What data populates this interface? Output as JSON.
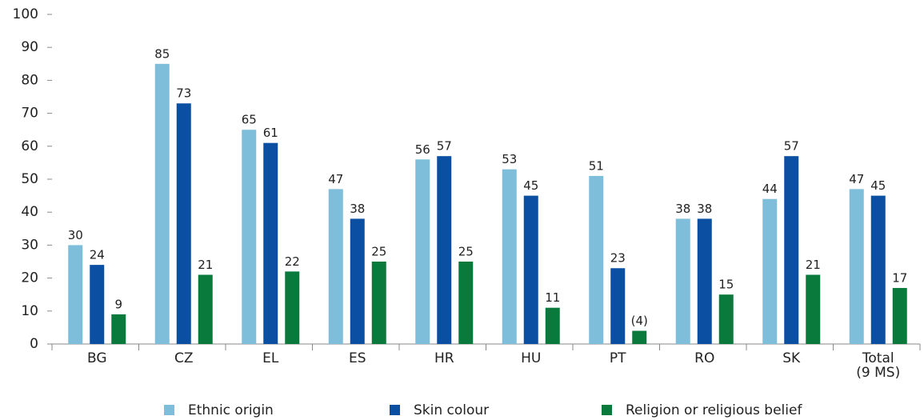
{
  "chart_data": {
    "type": "bar",
    "categories": [
      "BG",
      "CZ",
      "EL",
      "ES",
      "HR",
      "HU",
      "PT",
      "RO",
      "SK",
      "Total\n(9 MS)"
    ],
    "series": [
      {
        "name": "Ethnic origin",
        "color": "#7fbedb",
        "values": [
          30,
          85,
          65,
          47,
          56,
          53,
          51,
          38,
          44,
          47
        ]
      },
      {
        "name": "Skin colour",
        "color": "#0b4fa2",
        "values": [
          24,
          73,
          61,
          38,
          57,
          45,
          23,
          38,
          57,
          45
        ]
      },
      {
        "name": "Religion or religious belief",
        "color": "#0a7a3c",
        "values": [
          9,
          21,
          22,
          25,
          25,
          11,
          4,
          15,
          21,
          17
        ],
        "value_labels": [
          "9",
          "21",
          "22",
          "25",
          "25",
          "11",
          "(4)",
          "15",
          "21",
          "17"
        ]
      }
    ],
    "ylim": [
      0,
      100
    ],
    "yticks": [
      0,
      10,
      20,
      30,
      40,
      50,
      60,
      70,
      80,
      90,
      100
    ],
    "grid": false,
    "legend": "bottom"
  }
}
